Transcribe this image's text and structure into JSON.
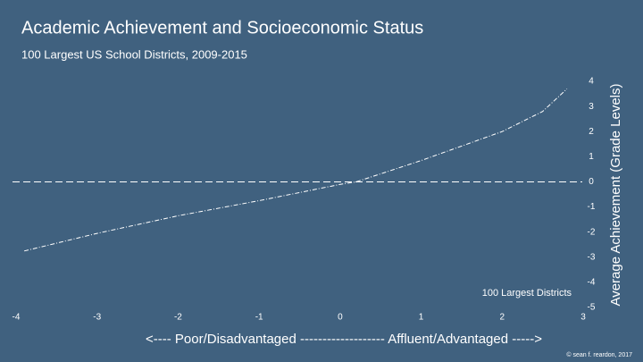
{
  "chart_data": {
    "type": "line",
    "title": "Academic Achievement and Socioeconomic Status",
    "subtitle": "100 Largest US School Districts, 2009-2015",
    "y_label": "Average Achievement (Grade Levels)",
    "x_label": "<---- Poor/Disadvantaged ------------------- Affluent/Advantaged ----->",
    "annotation": "100 Largest Districts",
    "credit": "© sean f. reardon, 2017",
    "x": [
      -3.9,
      -3,
      -2,
      -1,
      0,
      0.2,
      1,
      2,
      2.5,
      2.8
    ],
    "values": [
      -2.75,
      -2.05,
      -1.35,
      -0.75,
      -0.1,
      0,
      0.85,
      2.0,
      2.8,
      3.7
    ],
    "color": "#ffffff",
    "xlim": [
      -4,
      3
    ],
    "xticks": [
      -4,
      -3,
      -2,
      -1,
      0,
      1,
      2,
      3
    ],
    "ylim": [
      -5,
      4
    ],
    "yticks": [
      -5,
      -4,
      -3,
      -2,
      -1,
      0,
      1,
      2,
      3,
      4
    ]
  }
}
